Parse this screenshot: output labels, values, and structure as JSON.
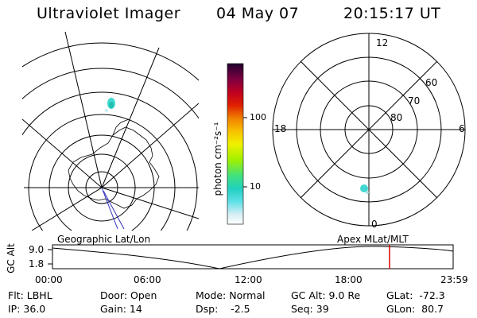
{
  "header": {
    "title": "Ultraviolet Imager",
    "date": "04 May 07",
    "time": "20:15:17 UT"
  },
  "colorbar": {
    "unit_label": "photon cm⁻²s⁻¹",
    "ticks": [
      "100",
      "10"
    ]
  },
  "mlt_plot": {
    "mlt_labels": {
      "top": "12",
      "right": "6",
      "bottom": "0",
      "left": "18"
    },
    "lat_labels": [
      "60",
      "70",
      "80"
    ]
  },
  "panel_labels": {
    "left": "Geographic Lat/Lon",
    "right": "Apex MLat/MLT"
  },
  "altitude_plot": {
    "axis_label": "GC Alt",
    "y_ticks": [
      "9.0",
      "1.8"
    ],
    "x_ticks": [
      "00:00",
      "06:00",
      "12:00",
      "18:00",
      "23:59"
    ],
    "current_marker_color": "#e00000"
  },
  "status": {
    "filter": "Flt: LBHL",
    "ip": "IP: 36.0",
    "door": "Door: Open",
    "gain": "Gain: 14",
    "mode": "Mode: Normal",
    "dsp": "Dsp:    -2.5",
    "gc_alt": "GC Alt: 9.0 Re",
    "seq": "Seq: 39",
    "glat": "GLat:  -72.3",
    "glon": "GLon:  80.7"
  }
}
